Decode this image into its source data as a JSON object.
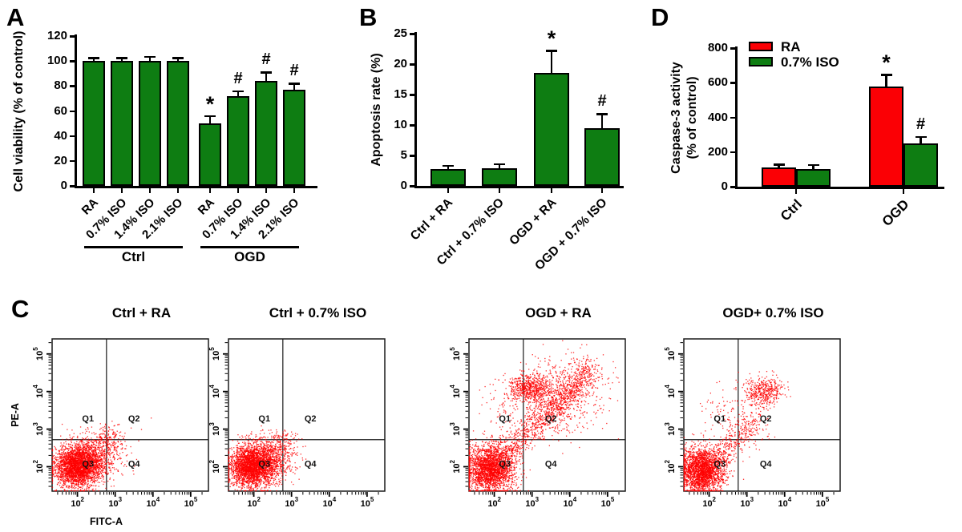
{
  "panel_labels": {
    "a": "A",
    "b": "B",
    "c": "C",
    "d": "D"
  },
  "colors": {
    "bar_green": "#0E7D12",
    "bar_red": "#FB0005",
    "scatter_red": "#FF0000",
    "axis_black": "#000000"
  },
  "chart_data": [
    {
      "id": "A",
      "type": "bar",
      "title": "",
      "ylabel": "Cell viability (% of control)",
      "ylim": [
        0,
        120
      ],
      "yticks": [
        0,
        20,
        40,
        60,
        80,
        100,
        120
      ],
      "categories": [
        "RA",
        "0.7% ISO",
        "1.4% ISO",
        "2.1% ISO",
        "RA",
        "0.7% ISO",
        "1.4% ISO",
        "2.1% ISO"
      ],
      "values": [
        100,
        100,
        100,
        100,
        50,
        72,
        84,
        77
      ],
      "errors": [
        1.5,
        1.5,
        2.5,
        1.5,
        5,
        3,
        6,
        4
      ],
      "sig": [
        "",
        "",
        "",
        "",
        "*",
        "#",
        "#",
        "#"
      ],
      "bar_color_key": "bar_green",
      "groups": [
        {
          "label": "Ctrl",
          "from": 0,
          "to": 3
        },
        {
          "label": "OGD",
          "from": 4,
          "to": 7
        }
      ]
    },
    {
      "id": "B",
      "type": "bar",
      "title": "",
      "ylabel": "Apoptosis rate (%)",
      "ylim": [
        0,
        25
      ],
      "yticks": [
        0,
        5,
        10,
        15,
        20,
        25
      ],
      "categories": [
        "Ctrl + RA",
        "Ctrl + 0.7% ISO",
        "OGD + RA",
        "OGD + 0.7% ISO"
      ],
      "values": [
        2.8,
        2.9,
        18.5,
        9.5
      ],
      "errors": [
        0.3,
        0.5,
        3.5,
        2.1
      ],
      "sig": [
        "",
        "",
        "*",
        "#"
      ],
      "bar_color_key": "bar_green"
    },
    {
      "id": "D",
      "type": "grouped-bar",
      "title": "",
      "ylabel_lines": [
        "Caspase-3 activity",
        "(% of control)"
      ],
      "ylim": [
        0,
        800
      ],
      "yticks": [
        0,
        200,
        400,
        600,
        800
      ],
      "categories": [
        "Ctrl",
        "OGD"
      ],
      "series": [
        {
          "name": "RA",
          "color_key": "bar_red",
          "values": [
            110,
            580
          ],
          "errors": [
            12,
            60
          ],
          "sig": [
            "",
            "*"
          ]
        },
        {
          "name": "0.7% ISO",
          "color_key": "bar_green",
          "values": [
            103,
            250
          ],
          "errors": [
            15,
            30
          ],
          "sig": [
            "",
            "#"
          ]
        }
      ],
      "legend": {
        "entries": [
          "RA",
          "0.7% ISO"
        ],
        "position": "top-left"
      }
    },
    {
      "id": "C",
      "type": "scatter",
      "subtype": "flow-cytometry",
      "xlabel": "FITC-A",
      "ylabel": "PE-A",
      "tick_base": "10",
      "tick_exponents": [
        2,
        3,
        4,
        5
      ],
      "xlog_range": [
        1.33,
        5.47
      ],
      "ylog_range": [
        1.35,
        5.4
      ],
      "quadrant_cross": {
        "x": 2.77,
        "y": 2.72
      },
      "quadrant_labels": [
        {
          "text": "Q1",
          "x": 2.28,
          "y": 3.2
        },
        {
          "text": "Q2",
          "x": 3.5,
          "y": 3.2
        },
        {
          "text": "Q3",
          "x": 2.28,
          "y": 2.0
        },
        {
          "text": "Q4",
          "x": 3.5,
          "y": 2.0
        }
      ],
      "plots": [
        {
          "title": "Ctrl + RA",
          "show_axis_labels": true,
          "clusters": [
            {
              "n": 2600,
              "cx": 2.0,
              "cy": 2.0,
              "sx": 0.3,
              "sy": 0.27
            },
            {
              "n": 900,
              "cx": 2.4,
              "cy": 2.25,
              "sx": 0.4,
              "sy": 0.3
            },
            {
              "n": 130,
              "cx": 2.8,
              "cy": 2.7,
              "sx": 0.22,
              "sy": 0.18
            },
            {
              "n": 5,
              "cx": 3.55,
              "cy": 3.15,
              "sx": 0.3,
              "sy": 0.1
            }
          ]
        },
        {
          "title": "Ctrl + 0.7% ISO",
          "show_axis_labels": false,
          "clusters": [
            {
              "n": 2600,
              "cx": 1.95,
              "cy": 2.0,
              "sx": 0.3,
              "sy": 0.27
            },
            {
              "n": 800,
              "cx": 2.35,
              "cy": 2.25,
              "sx": 0.38,
              "sy": 0.3
            },
            {
              "n": 90,
              "cx": 2.75,
              "cy": 2.65,
              "sx": 0.2,
              "sy": 0.17
            }
          ]
        },
        {
          "title": "OGD + RA",
          "show_axis_labels": false,
          "clusters": [
            {
              "n": 2400,
              "cx": 1.9,
              "cy": 1.95,
              "sx": 0.32,
              "sy": 0.32
            },
            {
              "band": true,
              "n": 1100,
              "from": 1.8,
              "to": 4.5,
              "jitter": 0.22
            },
            {
              "n": 550,
              "cx": 2.95,
              "cy": 4.1,
              "sx": 0.28,
              "sy": 0.18
            },
            {
              "n": 650,
              "cx": 3.7,
              "cy": 3.85,
              "sx": 0.55,
              "sy": 0.5
            },
            {
              "n": 120,
              "cx": 4.35,
              "cy": 4.45,
              "sx": 0.35,
              "sy": 0.3
            },
            {
              "n": 90,
              "cx": 2.4,
              "cy": 3.6,
              "sx": 0.35,
              "sy": 0.35
            }
          ]
        },
        {
          "title": "OGD+ 0.7% ISO",
          "show_axis_labels": false,
          "clusters": [
            {
              "n": 2300,
              "cx": 1.8,
              "cy": 1.9,
              "sx": 0.3,
              "sy": 0.3
            },
            {
              "band": true,
              "n": 330,
              "from": 1.8,
              "to": 3.3,
              "jitter": 0.2
            },
            {
              "n": 420,
              "cx": 3.45,
              "cy": 4.0,
              "sx": 0.25,
              "sy": 0.2
            },
            {
              "n": 130,
              "cx": 2.55,
              "cy": 3.4,
              "sx": 0.4,
              "sy": 0.38
            },
            {
              "n": 70,
              "cx": 3.1,
              "cy": 2.9,
              "sx": 0.3,
              "sy": 0.28
            }
          ]
        }
      ]
    }
  ]
}
